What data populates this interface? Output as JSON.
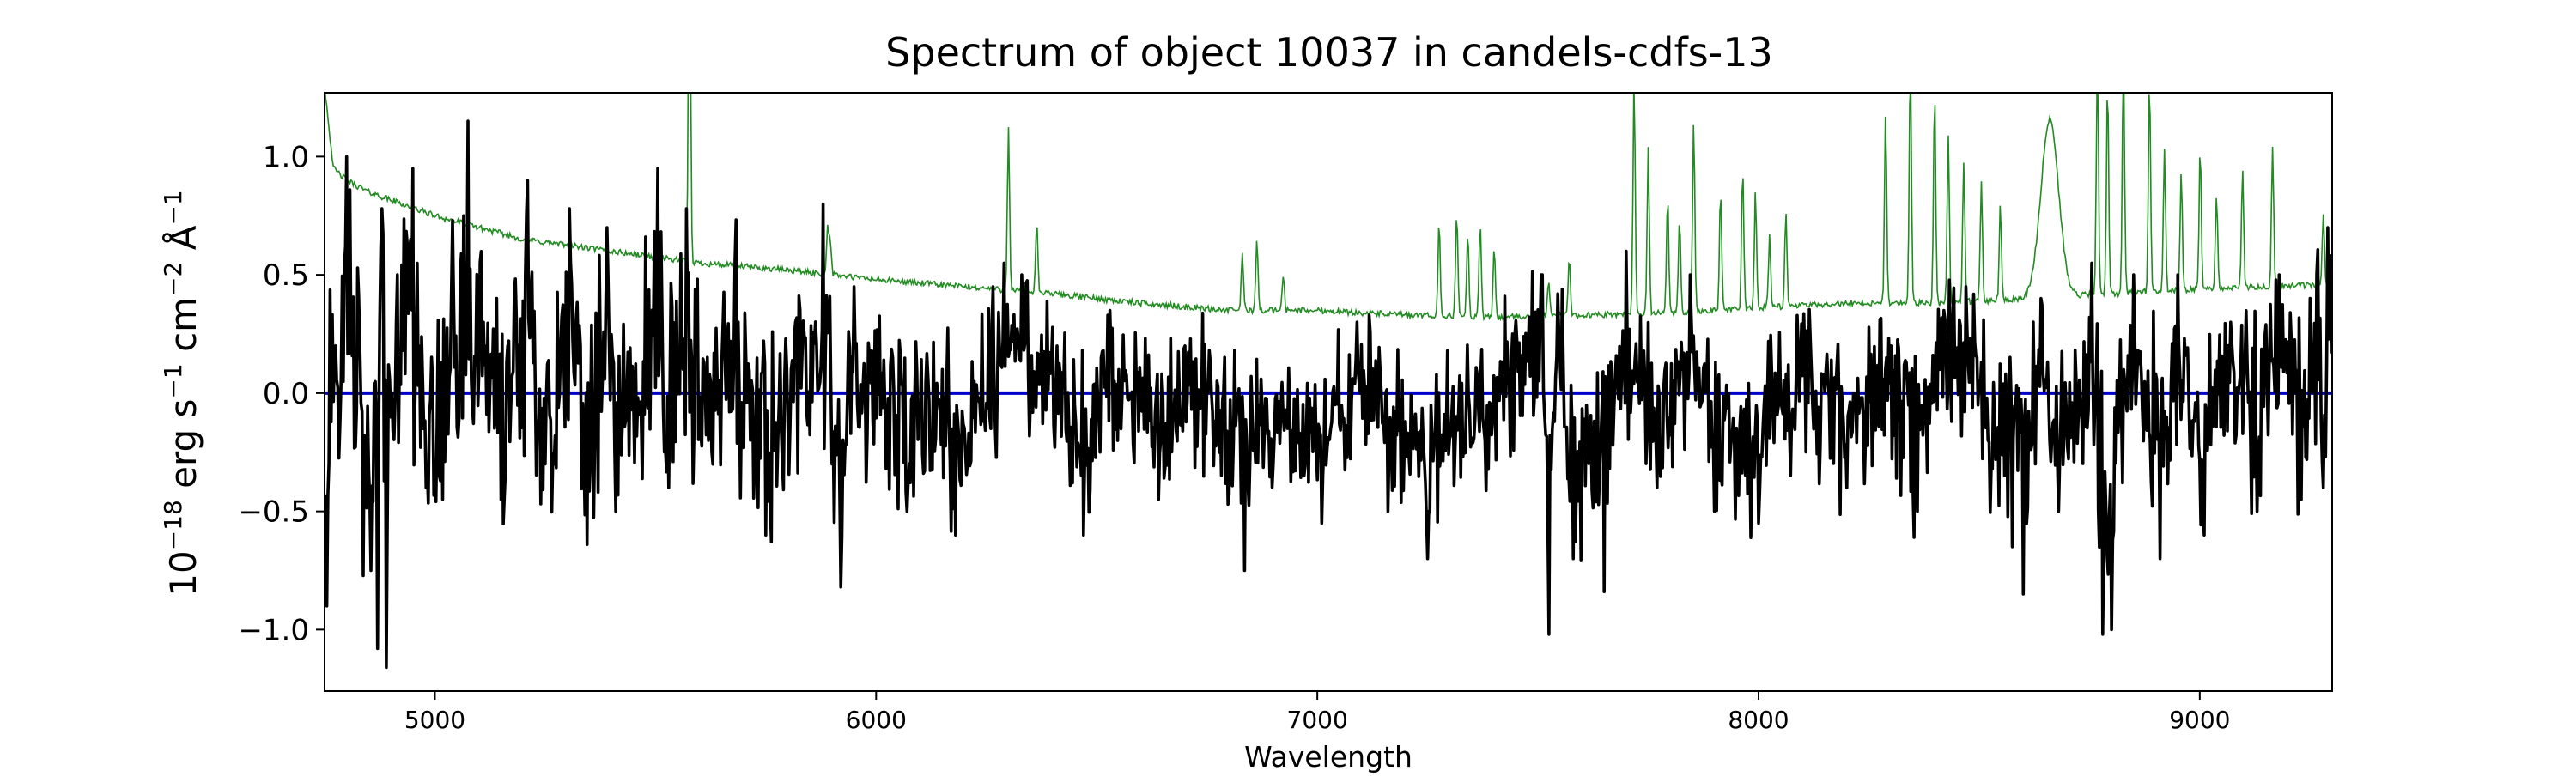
{
  "chart_data": {
    "type": "line",
    "title": "Spectrum of object 10037 in candels-cdfs-13",
    "xlabel": "Wavelength",
    "ylabel_parts": {
      "base": "10",
      "exp_base": "−18",
      "unit_erg": " erg s",
      "exp_s": "−1",
      "unit_cm": " cm",
      "exp_cm": "−2",
      "unit_ang": " Å",
      "exp_ang": "−1"
    },
    "xlim": [
      4750,
      9300
    ],
    "ylim": [
      -1.26,
      1.27
    ],
    "x_ticks": [
      5000,
      6000,
      7000,
      8000,
      9000
    ],
    "x_tick_labels": [
      "5000",
      "6000",
      "7000",
      "8000",
      "9000"
    ],
    "y_ticks": [
      -1.0,
      -0.5,
      0.0,
      0.5,
      1.0
    ],
    "y_tick_labels": [
      "−1.0",
      "−0.5",
      "0.0",
      "0.5",
      "1.0"
    ],
    "grid": false,
    "colors": {
      "flux": "#000000",
      "error": "#228b22",
      "zero": "#0000cd"
    },
    "series": [
      {
        "role": "flux",
        "line_color": "#000000",
        "sampling": {
          "start": 4750,
          "step": 2.5,
          "count": 1821
        },
        "anchors": [
          [
            4755,
            -0.9
          ],
          [
            4775,
            0.2
          ],
          [
            4800,
            1.0
          ],
          [
            4830,
            0.2
          ],
          [
            4855,
            -0.75
          ],
          [
            4870,
            -1.08
          ],
          [
            4880,
            0.78
          ],
          [
            4890,
            -1.16
          ],
          [
            4915,
            0.5
          ],
          [
            4950,
            0.95
          ],
          [
            4980,
            -0.4
          ],
          [
            5010,
            -0.35
          ],
          [
            5040,
            0.73
          ],
          [
            5075,
            1.15
          ],
          [
            5110,
            0.3
          ],
          [
            5150,
            -0.45
          ],
          [
            5210,
            0.9
          ],
          [
            5250,
            -0.3
          ],
          [
            5305,
            0.78
          ],
          [
            5345,
            -0.64
          ],
          [
            5390,
            0.7
          ],
          [
            5410,
            -0.5
          ],
          [
            5505,
            0.95
          ],
          [
            5530,
            -0.4
          ],
          [
            5570,
            0.78
          ],
          [
            5620,
            -0.2
          ],
          [
            5680,
            0.55
          ],
          [
            5750,
            -0.6
          ],
          [
            5880,
            0.8
          ],
          [
            5900,
            -0.3
          ],
          [
            5920,
            -0.82
          ],
          [
            5950,
            0.45
          ],
          [
            6070,
            -0.5
          ],
          [
            6150,
            0.1
          ],
          [
            6180,
            -0.6
          ],
          [
            6290,
            0.55
          ],
          [
            6330,
            0.5
          ],
          [
            6470,
            -0.6
          ],
          [
            6530,
            0.35
          ],
          [
            6640,
            -0.45
          ],
          [
            6700,
            0.2
          ],
          [
            6835,
            -0.75
          ],
          [
            6900,
            -0.3
          ],
          [
            7010,
            -0.55
          ],
          [
            7090,
            0.3
          ],
          [
            7160,
            -0.5
          ],
          [
            7250,
            -0.7
          ],
          [
            7380,
            -0.2
          ],
          [
            7510,
            0.5
          ],
          [
            7525,
            -1.02
          ],
          [
            7545,
            0.42
          ],
          [
            7580,
            -0.7
          ],
          [
            7650,
            -0.84
          ],
          [
            7700,
            0.6
          ],
          [
            7770,
            -0.4
          ],
          [
            7845,
            0.5
          ],
          [
            7900,
            -0.5
          ],
          [
            8000,
            -0.55
          ],
          [
            8090,
            0.2
          ],
          [
            8200,
            -0.4
          ],
          [
            8300,
            0.2
          ],
          [
            8360,
            -0.5
          ],
          [
            8420,
            0.35
          ],
          [
            8470,
            0.45
          ],
          [
            8520,
            -0.2
          ],
          [
            8575,
            -0.65
          ],
          [
            8600,
            -0.85
          ],
          [
            8640,
            0.4
          ],
          [
            8680,
            -0.5
          ],
          [
            8755,
            0.55
          ],
          [
            8780,
            -1.02
          ],
          [
            8800,
            -1.0
          ],
          [
            8850,
            0.5
          ],
          [
            8910,
            -0.7
          ],
          [
            8950,
            0.5
          ],
          [
            9010,
            -0.6
          ],
          [
            9070,
            0.3
          ],
          [
            9130,
            -0.5
          ],
          [
            9180,
            0.5
          ],
          [
            9230,
            -0.45
          ],
          [
            9265,
            0.5
          ],
          [
            9280,
            -0.4
          ],
          [
            9290,
            0.7
          ]
        ],
        "noise_profile": [
          [
            4750,
            0.55
          ],
          [
            5500,
            0.45
          ],
          [
            6000,
            0.35
          ],
          [
            7000,
            0.26
          ],
          [
            7500,
            0.34
          ],
          [
            8000,
            0.3
          ],
          [
            8600,
            0.36
          ],
          [
            9000,
            0.32
          ],
          [
            9300,
            0.4
          ]
        ]
      },
      {
        "role": "error",
        "line_color": "#228b22",
        "sampling": {
          "start": 4750,
          "step": 2.5,
          "count": 1821
        },
        "continuum": [
          [
            4750,
            1.3
          ],
          [
            4770,
            0.95
          ],
          [
            4800,
            0.9
          ],
          [
            4850,
            0.85
          ],
          [
            5000,
            0.75
          ],
          [
            5200,
            0.65
          ],
          [
            5400,
            0.6
          ],
          [
            5600,
            0.55
          ],
          [
            5800,
            0.52
          ],
          [
            6000,
            0.48
          ],
          [
            6200,
            0.45
          ],
          [
            6400,
            0.42
          ],
          [
            6600,
            0.38
          ],
          [
            6800,
            0.35
          ],
          [
            7000,
            0.35
          ],
          [
            7200,
            0.33
          ],
          [
            7400,
            0.32
          ],
          [
            7600,
            0.33
          ],
          [
            7800,
            0.34
          ],
          [
            8000,
            0.36
          ],
          [
            8200,
            0.38
          ],
          [
            8400,
            0.38
          ],
          [
            8600,
            0.4
          ],
          [
            8800,
            0.42
          ],
          [
            9000,
            0.44
          ],
          [
            9300,
            0.46
          ]
        ],
        "sky_lines": [
          [
            5577,
            1.5
          ],
          [
            5890,
            0.2
          ],
          [
            5896,
            0.15
          ],
          [
            6300,
            0.7
          ],
          [
            6364,
            0.3
          ],
          [
            6830,
            0.25
          ],
          [
            6863,
            0.3
          ],
          [
            6923,
            0.15
          ],
          [
            7276,
            0.4
          ],
          [
            7316,
            0.45
          ],
          [
            7341,
            0.35
          ],
          [
            7369,
            0.4
          ],
          [
            7401,
            0.3
          ],
          [
            7524,
            0.15
          ],
          [
            7571,
            0.25
          ],
          [
            7718,
            1.0
          ],
          [
            7750,
            0.7
          ],
          [
            7794,
            0.5
          ],
          [
            7821,
            0.4
          ],
          [
            7853,
            0.8
          ],
          [
            7914,
            0.5
          ],
          [
            7964,
            0.6
          ],
          [
            7993,
            0.5
          ],
          [
            8025,
            0.3
          ],
          [
            8062,
            0.4
          ],
          [
            8288,
            0.8
          ],
          [
            8344,
            1.0
          ],
          [
            8399,
            0.9
          ],
          [
            8430,
            0.7
          ],
          [
            8465,
            0.6
          ],
          [
            8505,
            0.5
          ],
          [
            8548,
            0.4
          ],
          [
            8768,
            1.0
          ],
          [
            8791,
            0.9
          ],
          [
            8827,
            1.0
          ],
          [
            8886,
            0.9
          ],
          [
            8920,
            0.6
          ],
          [
            8958,
            0.5
          ],
          [
            9001,
            0.6
          ],
          [
            9038,
            0.4
          ],
          [
            9097,
            0.5
          ],
          [
            9165,
            0.6
          ],
          [
            9280,
            0.3
          ]
        ],
        "broad_feature": {
          "center": 8660,
          "width": 20,
          "amplitude": 0.75
        }
      },
      {
        "role": "zero-line",
        "line_color": "#0000cd",
        "x": [
          4750,
          9300
        ],
        "y": [
          0.0,
          0.0
        ]
      }
    ]
  }
}
